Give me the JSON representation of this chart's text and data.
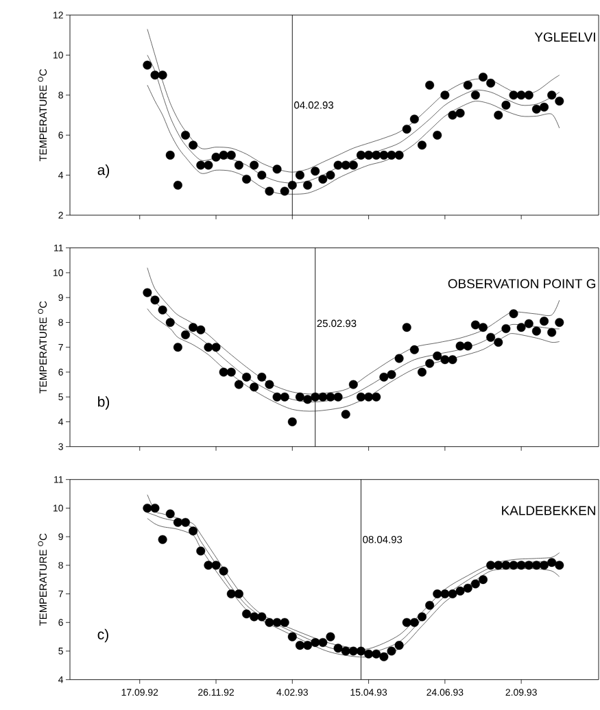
{
  "chart_data": [
    {
      "type": "scatter",
      "ylabel": "TEMPERATURE $^{O}$C",
      "annotations": [
        "YGLEELVI",
        "a)"
      ],
      "tick_labels": "y",
      "xlim": [
        "1992-07-15",
        "1993-11-12"
      ],
      "ylim": [
        2,
        12
      ],
      "yticks": [
        2,
        4,
        6,
        8,
        10,
        12
      ],
      "xticks": [
        {
          "value": "1992-09-17",
          "label": null
        },
        {
          "value": "1992-11-26",
          "label": null
        },
        {
          "value": "1993-02-04",
          "label": null
        },
        {
          "value": "1993-04-15",
          "label": null
        },
        {
          "value": "1993-06-24",
          "label": null
        },
        {
          "value": "1993-09-02",
          "label": null
        }
      ],
      "ref_lines": [
        {
          "axis": "x",
          "value": "1993-02-04",
          "label": "04.02.93"
        }
      ],
      "x": [
        "1992-09-24",
        "1992-10-01",
        "1992-10-08",
        "1992-10-15",
        "1992-10-22",
        "1992-10-29",
        "1992-11-05",
        "1992-11-12",
        "1992-11-19",
        "1992-11-26",
        "1992-12-03",
        "1992-12-10",
        "1992-12-17",
        "1992-12-24",
        "1992-12-31",
        "1993-01-07",
        "1993-01-14",
        "1993-01-21",
        "1993-01-28",
        "1993-02-04",
        "1993-02-11",
        "1993-02-18",
        "1993-02-25",
        "1993-03-04",
        "1993-03-11",
        "1993-03-18",
        "1993-03-25",
        "1993-04-01",
        "1993-04-08",
        "1993-04-15",
        "1993-04-22",
        "1993-04-29",
        "1993-05-06",
        "1993-05-13",
        "1993-05-20",
        "1993-05-27",
        "1993-06-03",
        "1993-06-10",
        "1993-06-17",
        "1993-06-24",
        "1993-07-01",
        "1993-07-08",
        "1993-07-15",
        "1993-07-22",
        "1993-07-29",
        "1993-08-05",
        "1993-08-12",
        "1993-08-19",
        "1993-08-26",
        "1993-09-02",
        "1993-09-09",
        "1993-09-16",
        "1993-09-23",
        "1993-09-30",
        "1993-10-07"
      ],
      "series": [
        {
          "color": "#000000",
          "marker": "circle",
          "values": [
            9.5,
            9.0,
            9.0,
            5.0,
            3.5,
            6.0,
            5.5,
            4.5,
            4.5,
            4.9,
            5.0,
            5.0,
            4.5,
            3.8,
            4.5,
            4.0,
            3.2,
            4.3,
            3.2,
            3.5,
            4.0,
            3.5,
            4.2,
            3.8,
            4.0,
            4.5,
            4.5,
            4.5,
            5.0,
            5.0,
            5.0,
            5.0,
            5.0,
            5.0,
            6.3,
            6.8,
            5.5,
            8.5,
            6.0,
            8.0,
            7.0,
            7.1,
            8.5,
            8.0,
            8.9,
            8.6,
            7.0,
            7.5,
            8.0,
            8.0,
            8.0,
            7.3,
            7.4,
            8.0,
            7.7
          ]
        },
        {
          "type": "line",
          "color": "#222222",
          "x": [
            "1992-09-24",
            "1992-10-01",
            "1992-10-08",
            "1992-10-15",
            "1992-10-22",
            "1992-10-29",
            "1992-11-12",
            "1992-11-26",
            "1992-12-10",
            "1992-12-24",
            "1993-01-07",
            "1993-01-21",
            "1993-02-04",
            "1993-02-18",
            "1993-03-04",
            "1993-03-18",
            "1993-04-01",
            "1993-04-15",
            "1993-04-29",
            "1993-05-13",
            "1993-05-27",
            "1993-06-10",
            "1993-06-24",
            "1993-07-08",
            "1993-07-22",
            "1993-08-05",
            "1993-08-19",
            "1993-09-02",
            "1993-09-16",
            "1993-09-30",
            "1993-10-07"
          ],
          "values": [
            10.0,
            9.2,
            8.0,
            6.9,
            6.1,
            5.5,
            4.75,
            4.85,
            4.8,
            4.5,
            4.0,
            3.7,
            3.6,
            3.7,
            4.0,
            4.4,
            4.75,
            5.05,
            5.3,
            5.6,
            6.15,
            6.8,
            7.5,
            7.95,
            8.25,
            8.15,
            7.8,
            7.5,
            7.55,
            7.9,
            8.15
          ]
        },
        {
          "type": "line",
          "color": "#222222",
          "x": [
            "1992-09-24",
            "1992-10-01",
            "1992-10-08",
            "1992-10-15",
            "1992-10-22",
            "1992-10-29",
            "1992-11-12",
            "1992-11-26",
            "1992-12-10",
            "1992-12-24",
            "1993-01-07",
            "1993-01-21",
            "1993-02-04",
            "1993-02-18",
            "1993-03-04",
            "1993-03-18",
            "1993-04-01",
            "1993-04-15",
            "1993-04-29",
            "1993-05-13",
            "1993-05-27",
            "1993-06-10",
            "1993-06-24",
            "1993-07-08",
            "1993-07-22",
            "1993-08-05",
            "1993-08-19",
            "1993-09-02",
            "1993-09-16",
            "1993-09-30",
            "1993-10-07"
          ],
          "values": [
            11.3,
            10.0,
            8.7,
            7.6,
            6.8,
            6.2,
            5.35,
            5.4,
            5.35,
            5.05,
            4.6,
            4.3,
            4.15,
            4.3,
            4.65,
            5.0,
            5.35,
            5.6,
            5.85,
            6.15,
            6.7,
            7.4,
            8.1,
            8.55,
            8.8,
            8.75,
            8.35,
            8.0,
            8.2,
            8.75,
            9.0
          ]
        },
        {
          "type": "line",
          "color": "#222222",
          "x": [
            "1992-09-24",
            "1992-10-01",
            "1992-10-08",
            "1992-10-15",
            "1992-10-22",
            "1992-10-29",
            "1992-11-12",
            "1992-11-26",
            "1992-12-10",
            "1992-12-24",
            "1993-01-07",
            "1993-01-21",
            "1993-02-04",
            "1993-02-18",
            "1993-03-04",
            "1993-03-18",
            "1993-04-01",
            "1993-04-15",
            "1993-04-29",
            "1993-05-13",
            "1993-05-27",
            "1993-06-10",
            "1993-06-24",
            "1993-07-08",
            "1993-07-22",
            "1993-08-05",
            "1993-08-19",
            "1993-09-02",
            "1993-09-16",
            "1993-09-30",
            "1993-10-07"
          ],
          "values": [
            8.5,
            7.7,
            7.0,
            6.1,
            5.4,
            4.9,
            4.1,
            4.25,
            4.2,
            3.9,
            3.4,
            3.1,
            3.05,
            3.1,
            3.4,
            3.85,
            4.2,
            4.5,
            4.7,
            5.05,
            5.55,
            6.25,
            6.95,
            7.4,
            7.7,
            7.55,
            7.2,
            6.95,
            6.95,
            7.05,
            6.35
          ]
        }
      ]
    },
    {
      "type": "scatter",
      "ylabel": "TEMPERATURE $^{O}$C",
      "annotations": [
        "OBSERVATION POINT G",
        "b)"
      ],
      "tick_labels": "y",
      "xlim": [
        "1992-07-15",
        "1993-11-12"
      ],
      "ylim": [
        3,
        11
      ],
      "yticks": [
        3,
        4,
        5,
        6,
        7,
        8,
        9,
        10,
        11
      ],
      "xticks": [
        {
          "value": "1992-09-17",
          "label": null
        },
        {
          "value": "1992-11-26",
          "label": null
        },
        {
          "value": "1993-02-04",
          "label": null
        },
        {
          "value": "1993-04-15",
          "label": null
        },
        {
          "value": "1993-06-24",
          "label": null
        },
        {
          "value": "1993-09-02",
          "label": null
        }
      ],
      "ref_lines": [
        {
          "axis": "x",
          "value": "1993-02-25",
          "label": "25.02.93"
        }
      ],
      "x": [
        "1992-09-24",
        "1992-10-01",
        "1992-10-08",
        "1992-10-15",
        "1992-10-22",
        "1992-10-29",
        "1992-11-05",
        "1992-11-12",
        "1992-11-19",
        "1992-11-26",
        "1992-12-03",
        "1992-12-10",
        "1992-12-17",
        "1992-12-24",
        "1992-12-31",
        "1993-01-07",
        "1993-01-14",
        "1993-01-21",
        "1993-01-28",
        "1993-02-04",
        "1993-02-11",
        "1993-02-18",
        "1993-02-25",
        "1993-03-04",
        "1993-03-11",
        "1993-03-18",
        "1993-03-25",
        "1993-04-01",
        "1993-04-08",
        "1993-04-15",
        "1993-04-22",
        "1993-04-29",
        "1993-05-06",
        "1993-05-13",
        "1993-05-20",
        "1993-05-27",
        "1993-06-03",
        "1993-06-10",
        "1993-06-17",
        "1993-06-24",
        "1993-07-01",
        "1993-07-08",
        "1993-07-15",
        "1993-07-22",
        "1993-07-29",
        "1993-08-05",
        "1993-08-12",
        "1993-08-19",
        "1993-08-26",
        "1993-09-02",
        "1993-09-09",
        "1993-09-16",
        "1993-09-23",
        "1993-09-30",
        "1993-10-07"
      ],
      "series": [
        {
          "color": "#000000",
          "marker": "circle",
          "values": [
            9.2,
            8.9,
            8.5,
            8.0,
            7.0,
            7.5,
            7.8,
            7.7,
            7.0,
            7.0,
            6.0,
            6.0,
            5.5,
            5.8,
            5.4,
            5.8,
            5.5,
            5.0,
            5.0,
            4.0,
            5.0,
            4.9,
            5.0,
            5.0,
            5.0,
            5.0,
            4.3,
            5.5,
            5.0,
            5.0,
            5.0,
            5.8,
            5.9,
            6.55,
            7.8,
            6.9,
            6.0,
            6.35,
            6.65,
            6.5,
            6.5,
            7.05,
            7.05,
            7.9,
            7.8,
            7.4,
            7.2,
            7.75,
            8.35,
            7.8,
            7.95,
            7.65,
            8.05,
            7.6,
            8.0
          ]
        },
        {
          "type": "line",
          "color": "#222222",
          "x": [
            "1992-09-24",
            "1992-10-01",
            "1992-10-15",
            "1992-10-22",
            "1992-11-05",
            "1992-11-19",
            "1992-12-03",
            "1992-12-24",
            "1993-01-14",
            "1993-02-04",
            "1993-02-25",
            "1993-03-25",
            "1993-04-15",
            "1993-05-06",
            "1993-05-27",
            "1993-06-17",
            "1993-07-08",
            "1993-07-29",
            "1993-08-19",
            "1993-08-26",
            "1993-09-16",
            "1993-09-30",
            "1993-10-07"
          ],
          "values": [
            9.3,
            8.85,
            8.2,
            7.9,
            7.55,
            7.1,
            6.55,
            5.8,
            5.25,
            4.9,
            4.8,
            4.98,
            5.44,
            6.0,
            6.5,
            6.72,
            6.91,
            7.23,
            7.78,
            7.92,
            7.83,
            7.75,
            7.74
          ]
        },
        {
          "type": "line",
          "color": "#222222",
          "x": [
            "1992-09-24",
            "1992-10-01",
            "1992-10-15",
            "1992-10-22",
            "1992-11-05",
            "1992-11-19",
            "1992-12-03",
            "1992-12-24",
            "1993-01-14",
            "1993-02-04",
            "1993-02-25",
            "1993-03-25",
            "1993-04-15",
            "1993-05-06",
            "1993-05-27",
            "1993-06-17",
            "1993-07-08",
            "1993-07-29",
            "1993-08-19",
            "1993-08-26",
            "1993-09-16",
            "1993-09-30",
            "1993-10-07"
          ],
          "values": [
            10.2,
            9.35,
            8.6,
            8.3,
            7.95,
            7.5,
            6.95,
            6.2,
            5.55,
            5.2,
            5.12,
            5.3,
            5.9,
            6.5,
            7.0,
            7.18,
            7.37,
            7.69,
            8.29,
            8.43,
            8.34,
            8.3,
            8.89
          ]
        },
        {
          "type": "line",
          "color": "#222222",
          "x": [
            "1992-09-24",
            "1992-10-01",
            "1992-10-15",
            "1992-10-22",
            "1992-11-05",
            "1992-11-19",
            "1992-12-03",
            "1992-12-24",
            "1993-01-14",
            "1993-02-04",
            "1993-02-25",
            "1993-03-25",
            "1993-04-15",
            "1993-05-06",
            "1993-05-27",
            "1993-06-17",
            "1993-07-08",
            "1993-07-29",
            "1993-08-19",
            "1993-08-26",
            "1993-09-16",
            "1993-09-30",
            "1993-10-07"
          ],
          "values": [
            8.55,
            8.2,
            7.75,
            7.4,
            7.1,
            6.7,
            6.15,
            5.45,
            4.9,
            4.5,
            4.43,
            4.61,
            5.02,
            5.62,
            6.13,
            6.4,
            6.63,
            6.91,
            7.46,
            7.55,
            7.37,
            7.2,
            7.23
          ]
        }
      ]
    },
    {
      "type": "scatter",
      "ylabel": "TEMPERATURE $^{O}$C",
      "annotations": [
        "KALDEBEKKEN",
        "c)"
      ],
      "xlim": [
        "1992-07-15",
        "1993-11-12"
      ],
      "ylim": [
        4,
        11
      ],
      "yticks": [
        4,
        5,
        6,
        7,
        8,
        9,
        10,
        11
      ],
      "xticks": [
        {
          "value": "1992-09-17",
          "label": "17.09.92"
        },
        {
          "value": "1992-11-26",
          "label": "26.11.92"
        },
        {
          "value": "1993-02-04",
          "label": "4.02.93"
        },
        {
          "value": "1993-04-15",
          "label": "15.04.93"
        },
        {
          "value": "1993-06-24",
          "label": "24.06.93"
        },
        {
          "value": "1993-09-02",
          "label": "2.09.93"
        }
      ],
      "ref_lines": [
        {
          "axis": "x",
          "value": "1993-04-08",
          "label": "08.04.93"
        }
      ],
      "x": [
        "1992-09-24",
        "1992-10-01",
        "1992-10-08",
        "1992-10-15",
        "1992-10-22",
        "1992-10-29",
        "1992-11-05",
        "1992-11-12",
        "1992-11-19",
        "1992-11-26",
        "1992-12-03",
        "1992-12-10",
        "1992-12-17",
        "1992-12-24",
        "1992-12-31",
        "1993-01-07",
        "1993-01-14",
        "1993-01-21",
        "1993-01-28",
        "1993-02-04",
        "1993-02-11",
        "1993-02-18",
        "1993-02-25",
        "1993-03-04",
        "1993-03-11",
        "1993-03-18",
        "1993-03-25",
        "1993-04-01",
        "1993-04-08",
        "1993-04-15",
        "1993-04-22",
        "1993-04-29",
        "1993-05-06",
        "1993-05-13",
        "1993-05-20",
        "1993-05-27",
        "1993-06-03",
        "1993-06-10",
        "1993-06-17",
        "1993-06-24",
        "1993-07-01",
        "1993-07-08",
        "1993-07-15",
        "1993-07-22",
        "1993-07-29",
        "1993-08-05",
        "1993-08-12",
        "1993-08-19",
        "1993-08-26",
        "1993-09-02",
        "1993-09-09",
        "1993-09-16",
        "1993-09-23",
        "1993-09-30",
        "1993-10-07"
      ],
      "series": [
        {
          "color": "#000000",
          "marker": "circle",
          "values": [
            10.0,
            10.0,
            8.9,
            9.8,
            9.5,
            9.5,
            9.2,
            8.5,
            8.0,
            8.0,
            7.8,
            7.0,
            7.0,
            6.3,
            6.2,
            6.2,
            6.0,
            6.0,
            6.0,
            5.5,
            5.2,
            5.2,
            5.3,
            5.3,
            5.5,
            5.1,
            5.0,
            5.0,
            5.0,
            4.9,
            4.9,
            4.8,
            5.0,
            5.2,
            6.0,
            6.0,
            6.2,
            6.6,
            7.0,
            7.0,
            7.0,
            7.1,
            7.2,
            7.35,
            7.5,
            8.0,
            8.0,
            8.0,
            8.0,
            8.0,
            8.0,
            8.0,
            8.0,
            8.1,
            8.0
          ]
        },
        {
          "type": "line",
          "color": "#222222",
          "x": [
            "1992-09-24",
            "1992-10-01",
            "1992-10-08",
            "1992-10-22",
            "1992-11-05",
            "1992-11-12",
            "1992-11-26",
            "1992-12-10",
            "1992-12-24",
            "1993-01-07",
            "1993-01-28",
            "1993-03-04",
            "1993-03-25",
            "1993-04-15",
            "1993-05-13",
            "1993-06-03",
            "1993-06-24",
            "1993-07-15",
            "1993-08-05",
            "1993-08-26",
            "1993-09-16",
            "1993-09-30",
            "1993-10-07"
          ],
          "values": [
            9.84,
            9.75,
            9.65,
            9.52,
            9.3,
            8.84,
            8.04,
            7.24,
            6.6,
            6.2,
            5.8,
            5.2,
            4.98,
            4.92,
            5.32,
            6.12,
            6.92,
            7.48,
            7.92,
            8.08,
            8.12,
            8.12,
            8.12
          ]
        },
        {
          "type": "line",
          "color": "#222222",
          "x": [
            "1992-09-24",
            "1992-10-01",
            "1992-10-08",
            "1992-10-22",
            "1992-11-05",
            "1992-11-12",
            "1992-11-26",
            "1992-12-10",
            "1992-12-24",
            "1993-01-07",
            "1993-01-28",
            "1993-03-04",
            "1993-03-25",
            "1993-04-15",
            "1993-05-13",
            "1993-06-03",
            "1993-06-24",
            "1993-07-15",
            "1993-08-05",
            "1993-08-26",
            "1993-09-16",
            "1993-09-30",
            "1993-10-07"
          ],
          "values": [
            10.47,
            9.9,
            9.8,
            9.65,
            9.45,
            9.08,
            8.28,
            7.48,
            6.76,
            6.28,
            5.88,
            5.35,
            5.15,
            5.08,
            5.56,
            6.36,
            7.16,
            7.64,
            8.04,
            8.2,
            8.24,
            8.28,
            8.44
          ]
        },
        {
          "type": "line",
          "color": "#222222",
          "x": [
            "1992-09-24",
            "1992-10-01",
            "1992-10-08",
            "1992-10-22",
            "1992-11-05",
            "1992-11-12",
            "1992-11-26",
            "1992-12-10",
            "1992-12-24",
            "1993-01-07",
            "1993-01-28",
            "1993-03-04",
            "1993-03-25",
            "1993-04-15",
            "1993-05-13",
            "1993-06-03",
            "1993-06-24",
            "1993-07-15",
            "1993-08-05",
            "1993-08-26",
            "1993-09-16",
            "1993-09-30",
            "1993-10-07"
          ],
          "values": [
            9.64,
            9.45,
            9.35,
            9.26,
            9.05,
            8.6,
            7.8,
            7.08,
            6.44,
            6.08,
            5.68,
            5.05,
            4.85,
            4.8,
            5.08,
            5.88,
            6.72,
            7.28,
            7.8,
            7.88,
            7.88,
            7.8,
            7.6
          ]
        }
      ]
    }
  ]
}
